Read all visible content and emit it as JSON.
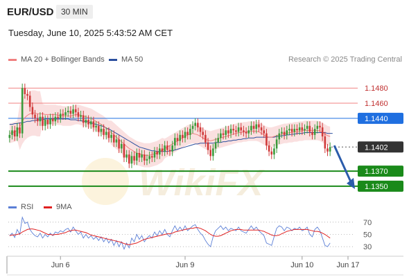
{
  "header": {
    "symbol": "EUR/USD",
    "timeframe": "30 MIN",
    "datetime": "Tuesday, June 10, 2025 5:43:52 AM CET"
  },
  "legend": {
    "ma20": {
      "label": "MA 20 + Bollinger Bands",
      "color": "#f08080"
    },
    "ma50": {
      "label": "MA 50",
      "color": "#2b4f9e"
    },
    "copyright": "Research © 2025 Trading Central"
  },
  "rsi_legend": {
    "rsi": {
      "label": "RSI",
      "color": "#5b7fd6"
    },
    "ma9": {
      "label": "9MA",
      "color": "#e02020"
    }
  },
  "watermark": "WikiFX",
  "colors": {
    "up_candle": "#3a9a3a",
    "down_candle": "#d03a3a",
    "support": "#1a8a1a",
    "resistance": "#f08080",
    "pivot": "#1f6fe0",
    "current": "#333333",
    "arrow": "#2b5cab"
  },
  "chart_data": {
    "type": "candlestick",
    "x_ticks": [
      "Jun 6",
      "Jun 9",
      "Jun 10",
      "Jun 17"
    ],
    "x_tick_index": [
      20,
      69,
      115,
      140
    ],
    "ylim": [
      1.1338,
      1.1505
    ],
    "levels": [
      {
        "value": "1.1480",
        "y": 1.148,
        "kind": "resistance"
      },
      {
        "value": "1.1460",
        "y": 1.146,
        "kind": "resistance"
      },
      {
        "value": "1.1440",
        "y": 1.144,
        "kind": "pivot"
      },
      {
        "value": "1.1402",
        "y": 1.1402,
        "kind": "current"
      },
      {
        "value": "1.1370",
        "y": 1.137,
        "kind": "support"
      },
      {
        "value": "1.1350",
        "y": 1.135,
        "kind": "support"
      }
    ],
    "closes": [
      1.1418,
      1.1424,
      1.1416,
      1.1428,
      1.142,
      1.148,
      1.1472,
      1.147,
      1.1455,
      1.1445,
      1.144,
      1.1436,
      1.1442,
      1.143,
      1.1438,
      1.1432,
      1.144,
      1.1436,
      1.1442,
      1.144,
      1.1446,
      1.1444,
      1.1448,
      1.145,
      1.1446,
      1.1452,
      1.1448,
      1.1442,
      1.1444,
      1.1434,
      1.1438,
      1.1432,
      1.1436,
      1.1428,
      1.143,
      1.1422,
      1.1426,
      1.1418,
      1.1422,
      1.1414,
      1.1418,
      1.1408,
      1.1412,
      1.14,
      1.1406,
      1.1388,
      1.1392,
      1.138,
      1.139,
      1.1384,
      1.1394,
      1.1388,
      1.1392,
      1.1384,
      1.1386,
      1.139,
      1.1388,
      1.1396,
      1.1392,
      1.14,
      1.1396,
      1.1404,
      1.1398,
      1.1396,
      1.1404,
      1.1414,
      1.141,
      1.1418,
      1.1414,
      1.1422,
      1.1418,
      1.1426,
      1.143,
      1.1434,
      1.1428,
      1.1422,
      1.1418,
      1.1408,
      1.1398,
      1.139,
      1.14,
      1.1408,
      1.1414,
      1.142,
      1.1418,
      1.1424,
      1.142,
      1.1426,
      1.1424,
      1.1422,
      1.1428,
      1.1424,
      1.1422,
      1.142,
      1.1424,
      1.143,
      1.1426,
      1.1432,
      1.1428,
      1.1424,
      1.142,
      1.1404,
      1.1396,
      1.1392,
      1.14,
      1.1412,
      1.142,
      1.1422,
      1.1418,
      1.1424,
      1.1426,
      1.1422,
      1.1426,
      1.1424,
      1.1428,
      1.1424,
      1.1426,
      1.143,
      1.1422,
      1.1418,
      1.1426,
      1.143,
      1.1428,
      1.1416,
      1.14,
      1.1396,
      1.1402
    ],
    "ma20": [
      1.142,
      1.1421,
      1.1422,
      1.1424,
      1.1428,
      1.1436,
      1.1441,
      1.1444,
      1.1446,
      1.1447,
      1.1447,
      1.1446,
      1.1446,
      1.1446,
      1.1445,
      1.1445,
      1.1445,
      1.1445,
      1.1445,
      1.1444,
      1.1444,
      1.1443,
      1.1443,
      1.1443,
      1.1443,
      1.1444,
      1.1445,
      1.1445,
      1.1444,
      1.1443,
      1.1442,
      1.1441,
      1.144,
      1.1438,
      1.1436,
      1.1434,
      1.1432,
      1.143,
      1.1427,
      1.1424,
      1.1421,
      1.1418,
      1.1415,
      1.1412,
      1.1409,
      1.1406,
      1.1403,
      1.14,
      1.1398,
      1.1396,
      1.1394,
      1.1393,
      1.1392,
      1.1391,
      1.1391,
      1.1391,
      1.1392,
      1.1393,
      1.1394,
      1.1396,
      1.1398,
      1.14,
      1.1402,
      1.1404,
      1.1406,
      1.1408,
      1.141,
      1.1412,
      1.1414,
      1.1416,
      1.1418,
      1.1419,
      1.142,
      1.1419,
      1.1418,
      1.1416,
      1.1414,
      1.1412,
      1.1411,
      1.141,
      1.1411,
      1.1412,
      1.1413,
      1.1414,
      1.1415,
      1.1416,
      1.1417,
      1.1418,
      1.1419,
      1.142,
      1.1421,
      1.1421,
      1.1422,
      1.1422,
      1.1423,
      1.1423,
      1.1423,
      1.1423,
      1.1422,
      1.142,
      1.1418,
      1.1416,
      1.1415,
      1.1415,
      1.1416,
      1.1417,
      1.1418,
      1.1419,
      1.142,
      1.142,
      1.1421,
      1.1421,
      1.1422,
      1.1422,
      1.1423,
      1.1423,
      1.1424,
      1.1424,
      1.1424,
      1.1424,
      1.1424,
      1.1424,
      1.1423,
      1.1421,
      1.1419,
      1.1417,
      1.1416
    ],
    "ma50": [
      1.1432,
      1.1432,
      1.1433,
      1.1433,
      1.1434,
      1.1434,
      1.1435,
      1.1436,
      1.1436,
      1.1437,
      1.1437,
      1.1438,
      1.1438,
      1.1438,
      1.1439,
      1.1439,
      1.1439,
      1.1439,
      1.1439,
      1.1439,
      1.1439,
      1.1439,
      1.1439,
      1.1439,
      1.1438,
      1.1438,
      1.1438,
      1.1437,
      1.1437,
      1.1436,
      1.1436,
      1.1435,
      1.1434,
      1.1433,
      1.1432,
      1.1431,
      1.143,
      1.1429,
      1.1427,
      1.1426,
      1.1424,
      1.1422,
      1.142,
      1.1418,
      1.1416,
      1.1414,
      1.1412,
      1.141,
      1.1408,
      1.1406,
      1.1404,
      1.1402,
      1.1401,
      1.14,
      1.1399,
      1.1398,
      1.1397,
      1.1397,
      1.1396,
      1.1396,
      1.1396,
      1.1396,
      1.1396,
      1.1397,
      1.1397,
      1.1398,
      1.1399,
      1.14,
      1.1401,
      1.1402,
      1.1403,
      1.1404,
      1.1405,
      1.1406,
      1.1406,
      1.1407,
      1.1407,
      1.1407,
      1.1407,
      1.1407,
      1.1407,
      1.1408,
      1.1408,
      1.1408,
      1.1409,
      1.1409,
      1.141,
      1.141,
      1.1411,
      1.1411,
      1.1412,
      1.1412,
      1.1413,
      1.1413,
      1.1414,
      1.1414,
      1.1414,
      1.1415,
      1.1415,
      1.1415,
      1.1415,
      1.1415,
      1.1415,
      1.1415,
      1.1415,
      1.1416,
      1.1416,
      1.1417,
      1.1417,
      1.1418,
      1.1418,
      1.1419,
      1.1419,
      1.142,
      1.142,
      1.142,
      1.1421,
      1.1421,
      1.1421,
      1.1421,
      1.1421,
      1.1421,
      1.1421,
      1.1421,
      1.1421,
      1.142,
      1.142,
      1.142
    ],
    "rsi": {
      "ylim": [
        20,
        80
      ],
      "ticks": [
        70,
        50,
        30
      ],
      "rsi": [
        48,
        52,
        45,
        58,
        50,
        78,
        68,
        70,
        58,
        52,
        48,
        46,
        52,
        44,
        50,
        46,
        52,
        48,
        54,
        52,
        56,
        54,
        58,
        60,
        54,
        62,
        56,
        50,
        54,
        44,
        50,
        44,
        48,
        42,
        46,
        40,
        46,
        38,
        44,
        36,
        42,
        32,
        40,
        30,
        38,
        26,
        36,
        28,
        44,
        38,
        50,
        42,
        48,
        38,
        44,
        48,
        44,
        54,
        48,
        56,
        50,
        58,
        50,
        46,
        56,
        64,
        56,
        62,
        56,
        64,
        56,
        60,
        64,
        66,
        58,
        52,
        48,
        40,
        34,
        30,
        46,
        56,
        60,
        64,
        58,
        62,
        56,
        60,
        58,
        56,
        62,
        56,
        54,
        52,
        58,
        64,
        58,
        62,
        56,
        52,
        48,
        36,
        34,
        32,
        46,
        60,
        64,
        62,
        56,
        62,
        60,
        56,
        60,
        58,
        62,
        56,
        58,
        62,
        50,
        46,
        58,
        62,
        56,
        44,
        32,
        30,
        36
      ],
      "ma9": [
        48,
        49,
        49,
        50,
        51,
        54,
        56,
        58,
        59,
        59,
        58,
        57,
        56,
        54,
        52,
        50,
        50,
        49,
        50,
        50,
        51,
        52,
        53,
        55,
        56,
        57,
        57,
        56,
        55,
        54,
        53,
        51,
        49,
        48,
        47,
        46,
        45,
        44,
        43,
        42,
        41,
        40,
        39,
        38,
        37,
        35,
        34,
        33,
        34,
        35,
        36,
        38,
        40,
        42,
        43,
        44,
        45,
        46,
        47,
        48,
        49,
        50,
        51,
        51,
        52,
        54,
        55,
        56,
        57,
        58,
        59,
        60,
        60,
        61,
        61,
        60,
        58,
        56,
        53,
        50,
        48,
        47,
        47,
        48,
        50,
        52,
        54,
        56,
        57,
        58,
        58,
        58,
        57,
        57,
        57,
        57,
        57,
        57,
        57,
        56,
        55,
        53,
        51,
        49,
        48,
        48,
        49,
        51,
        53,
        55,
        56,
        57,
        58,
        58,
        58,
        58,
        58,
        58,
        57,
        56,
        55,
        55,
        54,
        52,
        50,
        47,
        44
      ]
    }
  }
}
